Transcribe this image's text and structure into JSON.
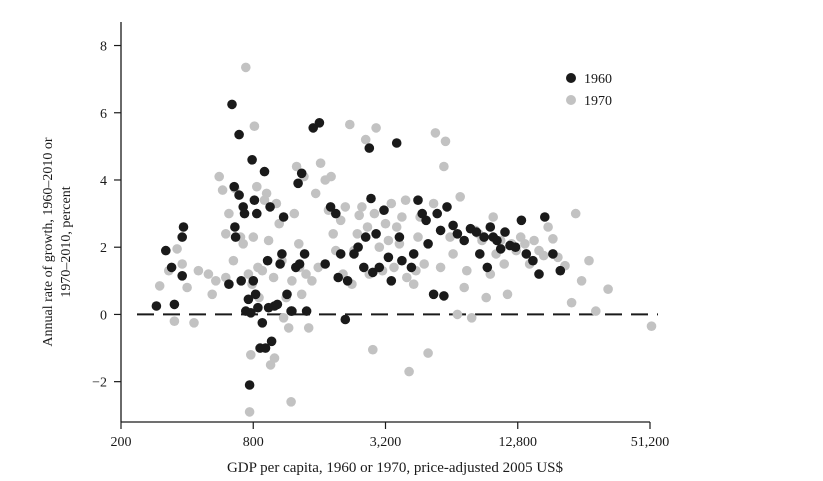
{
  "chart_data": {
    "type": "scatter",
    "xlabel": "GDP per capita, 1960 or 1970, price-adjusted 2005 US$",
    "ylabel_lines": [
      "Annual rate of growth, 1960–2010 or",
      "1970–2010, percent"
    ],
    "x_scale": "log2",
    "xlim": [
      200,
      51200
    ],
    "ylim": [
      -3.2,
      8.7
    ],
    "x_ticks": [
      {
        "value": 200,
        "label": "200"
      },
      {
        "value": 800,
        "label": "800"
      },
      {
        "value": 3200,
        "label": "3,200"
      },
      {
        "value": 12800,
        "label": "12,800"
      },
      {
        "value": 51200,
        "label": "51,200"
      }
    ],
    "y_ticks": [
      {
        "value": 8,
        "label": "8"
      },
      {
        "value": 6,
        "label": "6"
      },
      {
        "value": 4,
        "label": "4"
      },
      {
        "value": 2,
        "label": "2"
      },
      {
        "value": 0,
        "label": "0"
      },
      {
        "value": -2,
        "label": "−2"
      }
    ],
    "reference_line": {
      "y": 0,
      "style": "dashed"
    },
    "legend": {
      "placement": "top-right"
    },
    "grid": false,
    "series": [
      {
        "name": "1960",
        "color": "#1a1a1a",
        "points": [
          [
            290,
            0.25
          ],
          [
            320,
            1.9
          ],
          [
            340,
            1.4
          ],
          [
            350,
            0.3
          ],
          [
            380,
            2.3
          ],
          [
            385,
            2.6
          ],
          [
            380,
            1.15
          ],
          [
            620,
            0.9
          ],
          [
            640,
            6.25
          ],
          [
            655,
            3.8
          ],
          [
            660,
            2.6
          ],
          [
            665,
            2.3
          ],
          [
            690,
            5.35
          ],
          [
            690,
            3.55
          ],
          [
            705,
            1.0
          ],
          [
            720,
            3.2
          ],
          [
            730,
            3.0
          ],
          [
            740,
            0.1
          ],
          [
            760,
            0.45
          ],
          [
            770,
            -2.1
          ],
          [
            780,
            0.05
          ],
          [
            790,
            4.6
          ],
          [
            800,
            1.0
          ],
          [
            810,
            3.4
          ],
          [
            820,
            0.6
          ],
          [
            830,
            3.0
          ],
          [
            840,
            0.2
          ],
          [
            860,
            -1.0
          ],
          [
            880,
            -0.25
          ],
          [
            900,
            4.25
          ],
          [
            910,
            -1.0
          ],
          [
            930,
            1.6
          ],
          [
            940,
            0.2
          ],
          [
            955,
            3.2
          ],
          [
            970,
            -0.8
          ],
          [
            1000,
            0.25
          ],
          [
            1030,
            0.3
          ],
          [
            1060,
            1.5
          ],
          [
            1080,
            1.8
          ],
          [
            1100,
            2.9
          ],
          [
            1140,
            0.6
          ],
          [
            1190,
            0.1
          ],
          [
            1200,
            0.1
          ],
          [
            1250,
            1.4
          ],
          [
            1280,
            3.9
          ],
          [
            1300,
            1.5
          ],
          [
            1330,
            4.2
          ],
          [
            1370,
            1.8
          ],
          [
            1400,
            0.1
          ],
          [
            1500,
            5.55
          ],
          [
            1600,
            5.7
          ],
          [
            1700,
            1.5
          ],
          [
            1800,
            3.2
          ],
          [
            1900,
            3.0
          ],
          [
            1950,
            1.1
          ],
          [
            2000,
            1.8
          ],
          [
            2100,
            -0.15
          ],
          [
            2150,
            1.0
          ],
          [
            2300,
            1.8
          ],
          [
            2400,
            2.0
          ],
          [
            2550,
            1.4
          ],
          [
            2600,
            2.3
          ],
          [
            2700,
            4.95
          ],
          [
            2750,
            3.45
          ],
          [
            2800,
            1.25
          ],
          [
            2900,
            2.4
          ],
          [
            3000,
            1.4
          ],
          [
            3150,
            3.1
          ],
          [
            3300,
            1.7
          ],
          [
            3400,
            1.0
          ],
          [
            3600,
            5.1
          ],
          [
            3700,
            2.3
          ],
          [
            3800,
            1.6
          ],
          [
            4200,
            1.4
          ],
          [
            4300,
            1.8
          ],
          [
            4500,
            3.4
          ],
          [
            4700,
            3.0
          ],
          [
            4900,
            2.8
          ],
          [
            5000,
            2.1
          ],
          [
            5300,
            0.6
          ],
          [
            5500,
            3.0
          ],
          [
            5700,
            2.5
          ],
          [
            5900,
            0.55
          ],
          [
            6100,
            3.2
          ],
          [
            6500,
            2.65
          ],
          [
            6800,
            2.4
          ],
          [
            7300,
            2.2
          ],
          [
            7800,
            2.55
          ],
          [
            8300,
            2.45
          ],
          [
            8600,
            1.8
          ],
          [
            9000,
            2.3
          ],
          [
            9300,
            1.4
          ],
          [
            9600,
            2.6
          ],
          [
            9900,
            2.3
          ],
          [
            10300,
            2.2
          ],
          [
            10700,
            1.95
          ],
          [
            11200,
            2.45
          ],
          [
            11800,
            2.05
          ],
          [
            12500,
            2.0
          ],
          [
            13300,
            2.8
          ],
          [
            14000,
            1.8
          ],
          [
            15000,
            1.6
          ],
          [
            16000,
            1.2
          ],
          [
            17000,
            2.9
          ],
          [
            18500,
            1.8
          ],
          [
            20000,
            1.3
          ]
        ]
      },
      {
        "name": "1970",
        "color": "#c2c2c2",
        "points": [
          [
            300,
            0.85
          ],
          [
            330,
            1.3
          ],
          [
            350,
            -0.2
          ],
          [
            360,
            1.95
          ],
          [
            380,
            1.5
          ],
          [
            400,
            0.8
          ],
          [
            430,
            -0.25
          ],
          [
            450,
            1.3
          ],
          [
            500,
            1.2
          ],
          [
            520,
            0.6
          ],
          [
            540,
            1.0
          ],
          [
            560,
            4.1
          ],
          [
            580,
            3.7
          ],
          [
            600,
            1.1
          ],
          [
            600,
            2.4
          ],
          [
            620,
            3.0
          ],
          [
            650,
            1.6
          ],
          [
            660,
            3.75
          ],
          [
            700,
            2.3
          ],
          [
            720,
            2.1
          ],
          [
            740,
            7.35
          ],
          [
            760,
            1.2
          ],
          [
            770,
            -2.9
          ],
          [
            780,
            -1.2
          ],
          [
            790,
            0.9
          ],
          [
            800,
            2.3
          ],
          [
            810,
            5.6
          ],
          [
            830,
            3.8
          ],
          [
            840,
            1.4
          ],
          [
            850,
            0.5
          ],
          [
            880,
            1.3
          ],
          [
            900,
            3.4
          ],
          [
            920,
            3.6
          ],
          [
            940,
            2.2
          ],
          [
            960,
            -1.5
          ],
          [
            990,
            1.1
          ],
          [
            1000,
            -1.3
          ],
          [
            1020,
            3.3
          ],
          [
            1050,
            2.7
          ],
          [
            1080,
            1.6
          ],
          [
            1100,
            -0.1
          ],
          [
            1130,
            0.5
          ],
          [
            1160,
            -0.4
          ],
          [
            1190,
            -2.6
          ],
          [
            1200,
            1.0
          ],
          [
            1230,
            3.0
          ],
          [
            1260,
            4.4
          ],
          [
            1290,
            2.1
          ],
          [
            1300,
            1.4
          ],
          [
            1330,
            0.6
          ],
          [
            1360,
            4.1
          ],
          [
            1390,
            1.2
          ],
          [
            1430,
            -0.4
          ],
          [
            1480,
            1.0
          ],
          [
            1540,
            3.6
          ],
          [
            1580,
            1.4
          ],
          [
            1620,
            4.5
          ],
          [
            1700,
            4.0
          ],
          [
            1760,
            3.1
          ],
          [
            1810,
            4.1
          ],
          [
            1850,
            2.4
          ],
          [
            1900,
            1.9
          ],
          [
            2000,
            2.8
          ],
          [
            2050,
            1.2
          ],
          [
            2100,
            3.2
          ],
          [
            2200,
            5.65
          ],
          [
            2250,
            0.9
          ],
          [
            2300,
            1.9
          ],
          [
            2380,
            2.4
          ],
          [
            2430,
            2.95
          ],
          [
            2500,
            3.2
          ],
          [
            2600,
            5.2
          ],
          [
            2650,
            2.6
          ],
          [
            2700,
            1.2
          ],
          [
            2800,
            -1.05
          ],
          [
            2850,
            3.0
          ],
          [
            2900,
            5.55
          ],
          [
            3000,
            2.0
          ],
          [
            3100,
            1.3
          ],
          [
            3200,
            2.7
          ],
          [
            3300,
            2.2
          ],
          [
            3400,
            3.3
          ],
          [
            3500,
            1.4
          ],
          [
            3600,
            2.6
          ],
          [
            3700,
            2.1
          ],
          [
            3800,
            2.9
          ],
          [
            3950,
            3.4
          ],
          [
            4000,
            1.1
          ],
          [
            4100,
            -1.7
          ],
          [
            4300,
            0.9
          ],
          [
            4400,
            1.3
          ],
          [
            4500,
            2.3
          ],
          [
            4600,
            2.9
          ],
          [
            4800,
            1.5
          ],
          [
            5000,
            -1.15
          ],
          [
            5300,
            3.3
          ],
          [
            5400,
            5.4
          ],
          [
            5700,
            1.4
          ],
          [
            5900,
            4.4
          ],
          [
            6000,
            5.15
          ],
          [
            6300,
            2.3
          ],
          [
            6500,
            1.8
          ],
          [
            6800,
            0.0
          ],
          [
            7000,
            3.5
          ],
          [
            7300,
            0.8
          ],
          [
            7500,
            1.3
          ],
          [
            7900,
            -0.1
          ],
          [
            8200,
            2.5
          ],
          [
            8500,
            2.4
          ],
          [
            8800,
            2.2
          ],
          [
            9200,
            0.5
          ],
          [
            9600,
            1.2
          ],
          [
            9900,
            2.9
          ],
          [
            10200,
            1.8
          ],
          [
            10700,
            2.2
          ],
          [
            11100,
            1.5
          ],
          [
            11500,
            0.6
          ],
          [
            12000,
            2.1
          ],
          [
            12600,
            1.9
          ],
          [
            13200,
            2.3
          ],
          [
            13800,
            2.1
          ],
          [
            14500,
            1.5
          ],
          [
            15200,
            2.2
          ],
          [
            16000,
            1.9
          ],
          [
            16800,
            1.75
          ],
          [
            17600,
            2.6
          ],
          [
            18500,
            2.25
          ],
          [
            19500,
            1.7
          ],
          [
            21000,
            1.45
          ],
          [
            22500,
            0.35
          ],
          [
            23500,
            3.0
          ],
          [
            25000,
            1.0
          ],
          [
            27000,
            1.6
          ],
          [
            29000,
            0.1
          ],
          [
            33000,
            0.75
          ],
          [
            52000,
            -0.35
          ]
        ]
      }
    ]
  }
}
